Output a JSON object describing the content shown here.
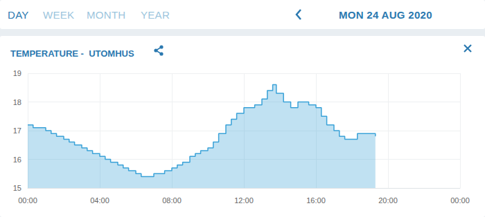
{
  "header": {
    "tabs": [
      "DAY",
      "WEEK",
      "MONTH",
      "YEAR"
    ],
    "date": "MON 24 AUG 2020"
  },
  "chart_data": {
    "type": "line",
    "title": "TEMPERATURE -  UTOMHUS",
    "x": [
      0,
      0.3,
      0.6,
      1.0,
      1.3,
      1.6,
      2.0,
      2.3,
      2.6,
      3.0,
      3.3,
      3.6,
      4.0,
      4.3,
      4.6,
      5.0,
      5.3,
      5.6,
      6.0,
      6.3,
      6.6,
      7.0,
      7.3,
      7.6,
      8.0,
      8.3,
      8.6,
      9.0,
      9.3,
      9.6,
      10.0,
      10.3,
      10.6,
      11.0,
      11.3,
      11.6,
      12.0,
      12.3,
      12.6,
      13.0,
      13.3,
      13.6,
      13.8,
      14.2,
      14.6,
      15.0,
      15.3,
      15.6,
      16.0,
      16.3,
      16.6,
      17.0,
      17.3,
      17.6,
      18.0,
      18.3,
      18.6,
      19.0,
      19.3
    ],
    "series": [
      {
        "name": "UTOMHUS",
        "color": "#3aa2d8",
        "values": [
          17.2,
          17.1,
          17.1,
          17.0,
          16.9,
          16.8,
          16.7,
          16.6,
          16.5,
          16.4,
          16.3,
          16.2,
          16.1,
          16.0,
          15.9,
          15.8,
          15.7,
          15.6,
          15.5,
          15.4,
          15.4,
          15.5,
          15.5,
          15.6,
          15.7,
          15.8,
          15.9,
          16.1,
          16.2,
          16.3,
          16.4,
          16.6,
          16.9,
          17.2,
          17.4,
          17.6,
          17.8,
          17.8,
          17.9,
          18.1,
          18.4,
          18.6,
          18.3,
          18.0,
          17.8,
          18.0,
          18.0,
          17.9,
          17.8,
          17.5,
          17.2,
          17.0,
          16.8,
          16.7,
          16.7,
          16.9,
          16.9,
          16.9,
          16.8
        ]
      }
    ],
    "xlim": [
      0,
      24
    ],
    "xticks": [
      {
        "value": 0,
        "label": "00:00"
      },
      {
        "value": 4,
        "label": "04:00"
      },
      {
        "value": 8,
        "label": "08:00"
      },
      {
        "value": 12,
        "label": "12:00"
      },
      {
        "value": 16,
        "label": "16:00"
      },
      {
        "value": 20,
        "label": "20:00"
      },
      {
        "value": 24,
        "label": "00:00"
      }
    ],
    "ylim": [
      15,
      19
    ],
    "yticks": [
      15,
      16,
      17,
      18,
      19
    ],
    "grid": true
  }
}
